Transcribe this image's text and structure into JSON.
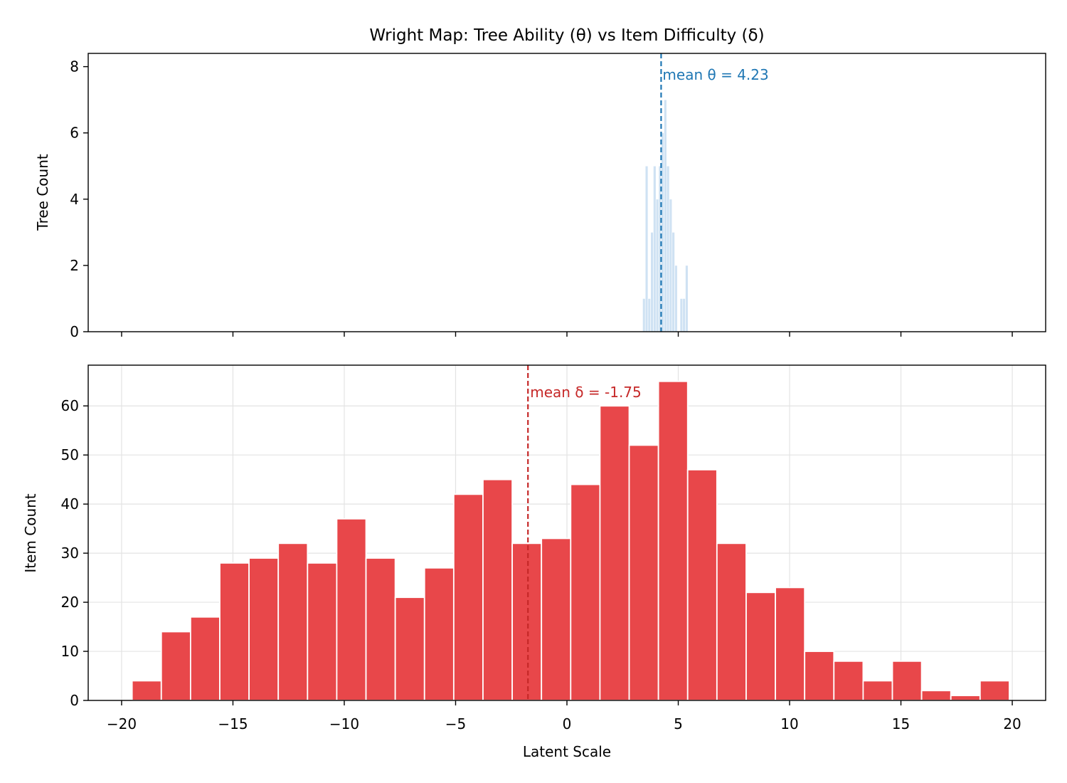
{
  "title": "Wright Map: Tree Ability (θ) vs Item Difficulty (δ)",
  "chart_data": [
    {
      "type": "bar",
      "panel": "top",
      "ylabel": "Tree Count",
      "xlabel": "",
      "ylim": [
        0,
        8.4
      ],
      "yticks": [
        0,
        2,
        4,
        6,
        8
      ],
      "xlim": [
        -21.5,
        21.5
      ],
      "grid": false,
      "bar_color": "#cfe2f3",
      "bins": [
        {
          "x0": 3.4,
          "x1": 3.52,
          "count": 1
        },
        {
          "x0": 3.52,
          "x1": 3.64,
          "count": 5
        },
        {
          "x0": 3.64,
          "x1": 3.76,
          "count": 1
        },
        {
          "x0": 3.76,
          "x1": 3.88,
          "count": 3
        },
        {
          "x0": 3.88,
          "x1": 4.0,
          "count": 5
        },
        {
          "x0": 4.0,
          "x1": 4.12,
          "count": 4
        },
        {
          "x0": 4.12,
          "x1": 4.24,
          "count": 5
        },
        {
          "x0": 4.24,
          "x1": 4.36,
          "count": 6
        },
        {
          "x0": 4.36,
          "x1": 4.48,
          "count": 7
        },
        {
          "x0": 4.48,
          "x1": 4.6,
          "count": 5
        },
        {
          "x0": 4.6,
          "x1": 4.72,
          "count": 4
        },
        {
          "x0": 4.72,
          "x1": 4.84,
          "count": 3
        },
        {
          "x0": 4.84,
          "x1": 4.96,
          "count": 2
        },
        {
          "x0": 4.96,
          "x1": 5.08,
          "count": 0
        },
        {
          "x0": 5.08,
          "x1": 5.2,
          "count": 1
        },
        {
          "x0": 5.2,
          "x1": 5.32,
          "count": 1
        },
        {
          "x0": 5.32,
          "x1": 5.44,
          "count": 2
        }
      ],
      "mean_line": {
        "value": 4.23,
        "label": "mean θ = 4.23",
        "color": "#1f77b4"
      }
    },
    {
      "type": "bar",
      "panel": "bottom",
      "ylabel": "Item Count",
      "xlabel": "Latent Scale",
      "ylim": [
        0,
        68.3
      ],
      "yticks": [
        0,
        10,
        20,
        30,
        40,
        50,
        60
      ],
      "xlim": [
        -21.5,
        21.5
      ],
      "xticks": [
        -20,
        -15,
        -10,
        -5,
        0,
        5,
        10,
        15,
        20
      ],
      "xtick_labels": [
        "−20",
        "−15",
        "−10",
        "−5",
        "0",
        "5",
        "10",
        "15",
        "20"
      ],
      "grid": true,
      "bar_color": "#e8474a",
      "bin_start": -19.53,
      "bin_width": 1.3133,
      "counts": [
        4,
        14,
        17,
        28,
        29,
        32,
        28,
        37,
        29,
        21,
        27,
        42,
        45,
        32,
        33,
        44,
        60,
        52,
        65,
        47,
        32,
        22,
        23,
        10,
        8,
        4,
        8,
        2,
        1,
        4
      ],
      "mean_line": {
        "value": -1.75,
        "label": "mean δ = -1.75",
        "color": "#c62828"
      }
    }
  ]
}
